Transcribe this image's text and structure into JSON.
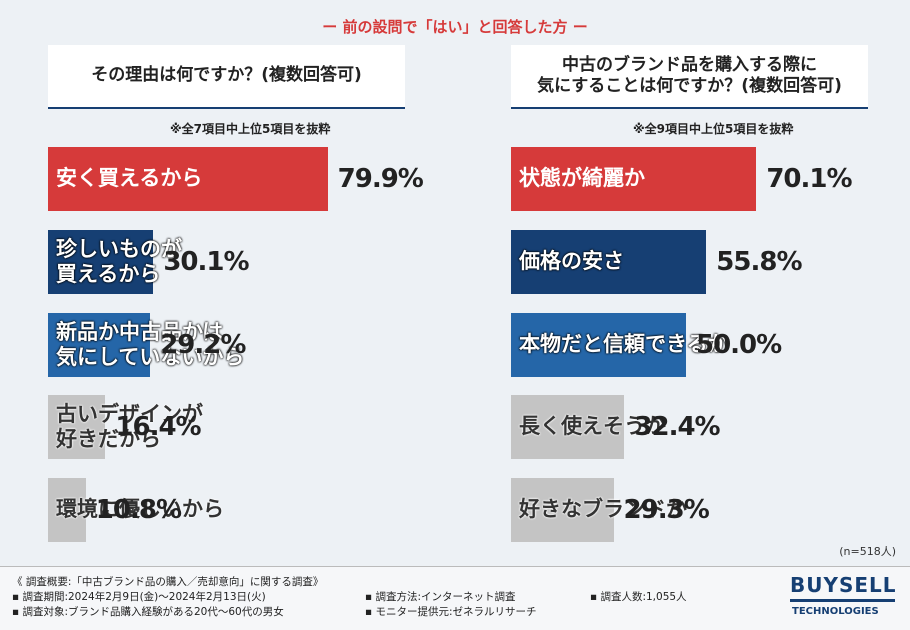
{
  "header": "前の設問で「はい」と回答した方",
  "chart_data": [
    {
      "type": "bar",
      "title": "その理由は何ですか？(複数回答可)",
      "note": "※全7項目中上位5項目を抜粋",
      "categories": [
        "安く買えるから",
        "珍しいものが\n買えるから",
        "新品か中古品かは\n気にしていないから",
        "古いデザインが\n好きだから",
        "環境に優しいから"
      ],
      "values": [
        79.9,
        30.1,
        29.2,
        16.4,
        10.8
      ],
      "value_labels": [
        "79.9%",
        "30.1%",
        "29.2%",
        "16.4%",
        "10.8%"
      ],
      "colors": [
        "#d63a3a",
        "#163f73",
        "#2566a8",
        "#c4c4c4",
        "#c4c4c4"
      ]
    },
    {
      "type": "bar",
      "title": "中古のブランド品を購入する際に\n気にすることは何ですか？(複数回答可)",
      "note": "※全9項目中上位5項目を抜粋",
      "categories": [
        "状態が綺麗か",
        "価格の安さ",
        "本物だと信頼できるか",
        "長く使えそうか",
        "好きなブランドか"
      ],
      "values": [
        70.1,
        55.8,
        50.0,
        32.4,
        29.3
      ],
      "value_labels": [
        "70.1%",
        "55.8%",
        "50.0%",
        "32.4%",
        "29.3%"
      ],
      "colors": [
        "#d63a3a",
        "#163f73",
        "#2566a8",
        "#c4c4c4",
        "#c4c4c4"
      ]
    }
  ],
  "sample": "(n=518人)",
  "footer": {
    "summary": "《 調査概要:「中古ブランド品の購入／売却意向」に関する調査》",
    "items": [
      "▪ 調査期間:2024年2月9日(金)〜2024年2月13日(火)",
      "▪ 調査方法:インターネット調査",
      "▪ 調査人数:1,055人",
      "▪ 調査対象:ブランド品購入経験がある20代〜60代の男女",
      "▪ モニター提供元:ゼネラルリサーチ"
    ]
  },
  "logo": {
    "name": "BUYSELL",
    "sub": "TECHNOLOGIES"
  }
}
